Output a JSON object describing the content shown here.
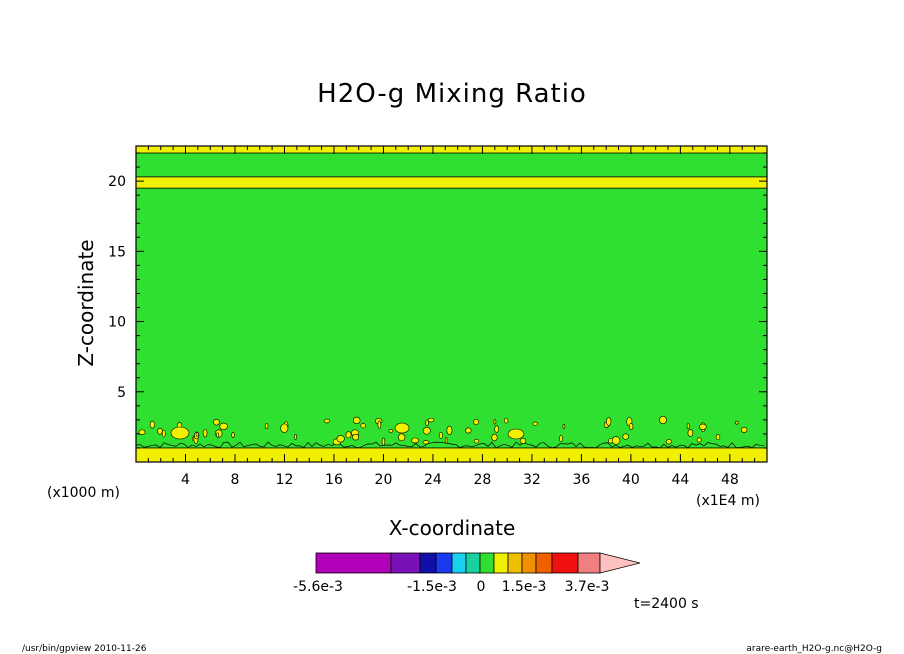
{
  "chart_data": {
    "type": "heatmap",
    "title": "H2O-g Mixing Ratio",
    "xlabel": "X-coordinate",
    "ylabel": "Z-coordinate",
    "x_unit_left": "(x1000 m)",
    "x_unit_right": "(x1E4 m)",
    "xlim": [
      0,
      51
    ],
    "ylim": [
      0,
      22.5
    ],
    "x_ticks": [
      "4",
      "8",
      "12",
      "16",
      "20",
      "24",
      "28",
      "32",
      "36",
      "40",
      "44",
      "48"
    ],
    "y_ticks": [
      "5",
      "10",
      "15",
      "20"
    ],
    "colorbar": {
      "colors": [
        "#b000b8",
        "#7a10b8",
        "#1010a8",
        "#1a3af0",
        "#18d0f0",
        "#18d0a0",
        "#30e030",
        "#f0f000",
        "#f0c000",
        "#f09000",
        "#f06000",
        "#f01010",
        "#f08080",
        "#ffc0c0"
      ],
      "labels": [
        "-5.6e-3",
        "-1.5e-3",
        "0",
        "1.5e-3",
        "3.7e-3"
      ]
    },
    "fields": {
      "background": "#30e030",
      "bands": "#f0f000"
    },
    "bands": [
      {
        "z_min": 0,
        "z_max": 1.0
      },
      {
        "z_min": 19.5,
        "z_max": 20.3
      },
      {
        "z_min": 22.0,
        "z_max": 22.5
      }
    ],
    "time_label": "t=2400 s"
  },
  "footer": {
    "left": "/usr/bin/gpview  2010-11-26",
    "right": "arare-earth_H2O-g.nc@H2O-g"
  }
}
